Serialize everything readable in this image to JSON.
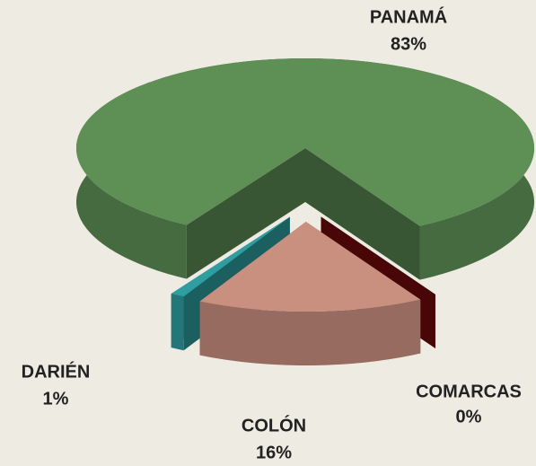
{
  "chart_data": {
    "type": "pie",
    "categories": [
      "COMARCAS",
      "COLÓN",
      "DARIÉN",
      "PANAMÁ"
    ],
    "values": [
      0,
      16,
      1,
      83
    ],
    "value_labels": [
      "0%",
      "16%",
      "1%",
      "83%"
    ],
    "colors": [
      "#7a0a0a",
      "#c98f7f",
      "#2f9ea0",
      "#5e8f55"
    ]
  }
}
